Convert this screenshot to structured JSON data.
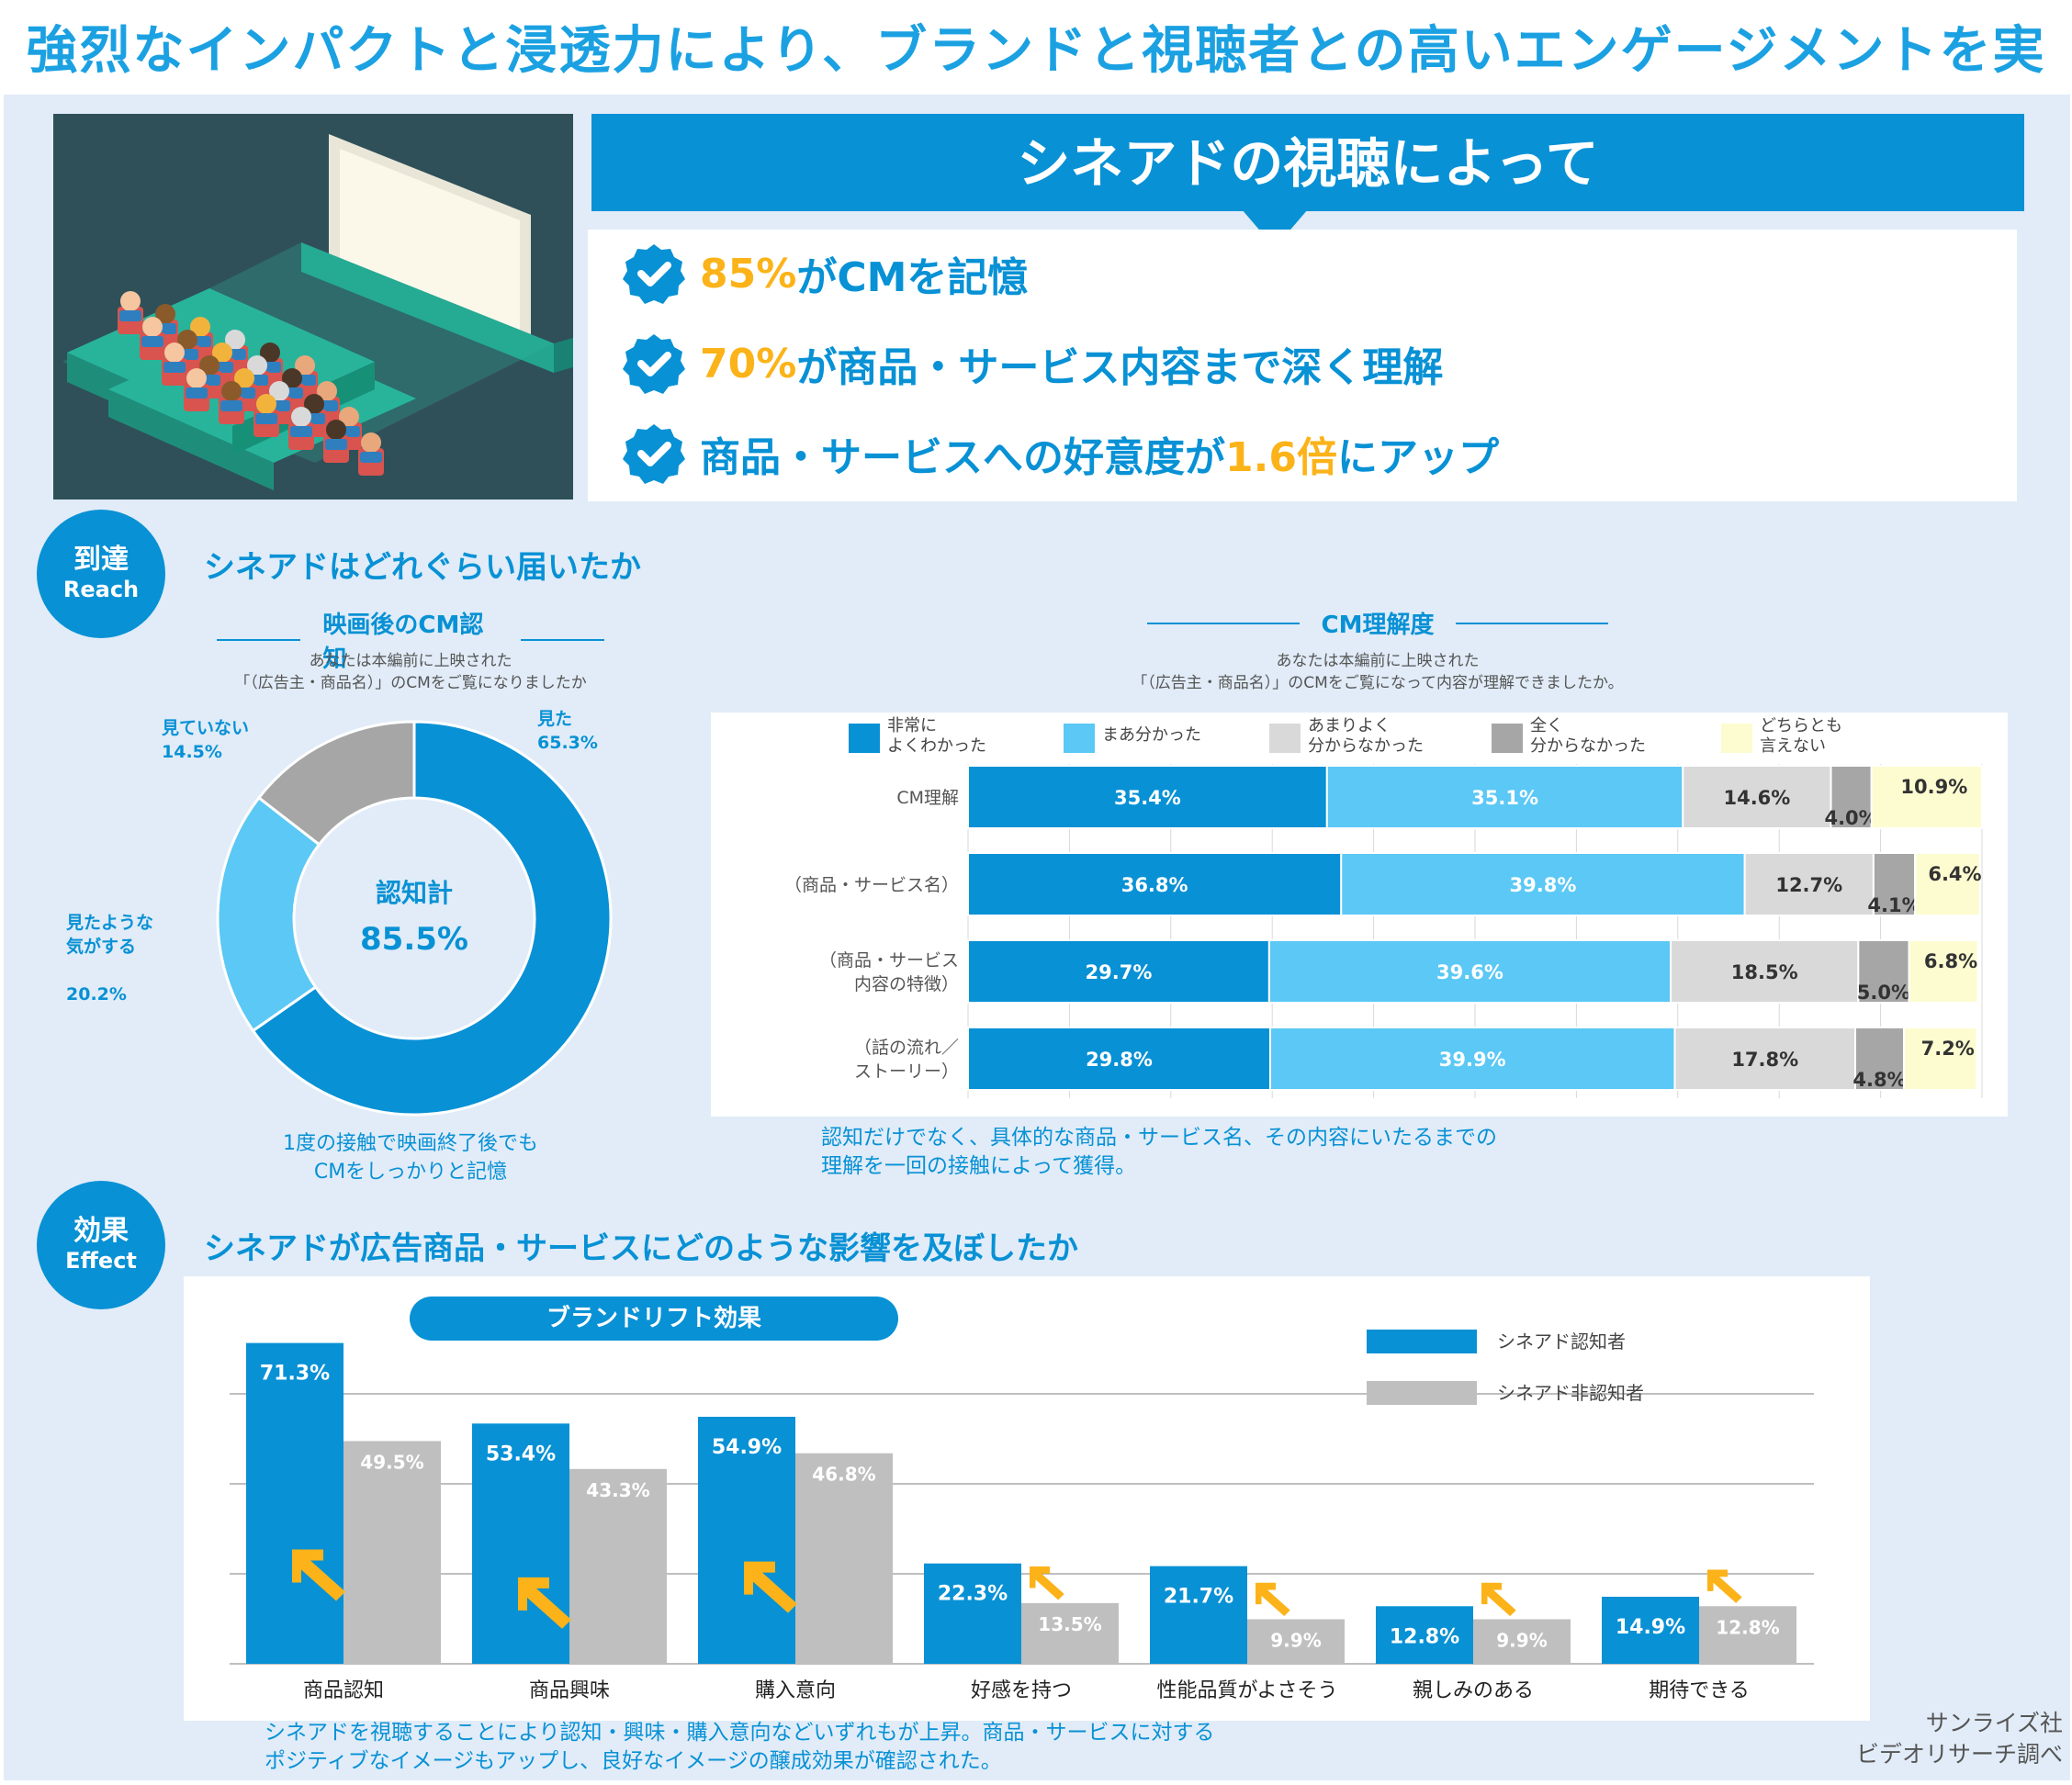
{
  "header": {
    "title": "強烈なインパクトと浸透力により、ブランドと視聴者との高いエンゲージメントを実現"
  },
  "view": {
    "banner": "シネアドの視聴によって",
    "points": [
      {
        "accent": "85%",
        "text": "がCMを記憶"
      },
      {
        "accent": "70%",
        "text": "が商品・サービス内容まで深く理解"
      },
      {
        "pre": "商品・サービスへの好意度が",
        "accent": "1.6倍",
        "text": "にアップ"
      }
    ]
  },
  "reach": {
    "badge": "到達",
    "badge_en": "Reach",
    "title": "シネアドはどれぐらい届いたか",
    "donut": {
      "subtitle": "映画後のCM認知",
      "question_1": "あなたは本編前に上映された",
      "question_2": "「（広告主・商品名）」のCMをご覧になりましたか",
      "center_label": "認知計",
      "center_value": "85.5%",
      "caption_1": "1度の接触で映画終了後でも",
      "caption_2": "CMをしっかりと記憶"
    },
    "bar": {
      "subtitle": "CM理解度",
      "question_1": "あなたは本編前に上映された",
      "question_2": "「（広告主・商品名）」のCMをご覧になって内容が理解できましたか。",
      "note_1": "認知だけでなく、具体的な商品・サービス名、その内容にいたるまでの",
      "note_2": "理解を一回の接触によって獲得。"
    }
  },
  "effect": {
    "badge": "効果",
    "badge_en": "Effect",
    "title": "シネアドが広告商品・サービスにどのような影響を及ぼしたか",
    "note_1": "シネアドを視聴することにより認知・興味・購入意向などいずれもが上昇。商品・サービスに対する",
    "note_2": "ポジティブなイメージもアップし、良好なイメージの醸成効果が確認された。"
  },
  "credit": {
    "line1": "サンライズ社",
    "line2": "ビデオリサーチ調べ"
  },
  "colors": {
    "blue": "#0891D5",
    "light_blue": "#5BC8F5",
    "light_gray": "#D9D9D9",
    "dark_gray": "#A6A6A6",
    "cream": "#FDFCD0",
    "accent": "#FBB319"
  },
  "chart_data": [
    {
      "type": "pie",
      "title": "映画後のCM認知",
      "categories": [
        "見た",
        "見たような気がする",
        "見ていない"
      ],
      "labels": [
        "見た",
        "見たような\n気がする",
        "見ていない"
      ],
      "values": [
        65.3,
        20.2,
        14.5
      ],
      "colors": [
        "#0891D5",
        "#5BC8F5",
        "#A6A6A6"
      ],
      "donut": true
    },
    {
      "type": "bar",
      "orientation": "horizontal",
      "stacked": true,
      "title": "CM理解度",
      "categories": [
        "CM理解",
        "（商品・サービス名）",
        "（商品・サービス\n内容の特徴）",
        "（話の流れ／\nストーリー）"
      ],
      "series": [
        {
          "name": "非常に\nよくわかった",
          "color": "#0891D5",
          "values": [
            35.4,
            36.8,
            29.7,
            29.8
          ]
        },
        {
          "name": "まあ分かった",
          "color": "#5BC8F5",
          "values": [
            35.1,
            39.8,
            39.6,
            39.9
          ]
        },
        {
          "name": "あまりよく\n分からなかった",
          "color": "#D9D9D9",
          "values": [
            14.6,
            12.7,
            18.5,
            17.8
          ]
        },
        {
          "name": "全く\n分からなかった",
          "color": "#A6A6A6",
          "values": [
            4.0,
            4.1,
            5.0,
            4.8
          ]
        },
        {
          "name": "どちらとも\n言えない",
          "color": "#FDFCD0",
          "values": [
            10.9,
            6.4,
            6.8,
            7.2
          ]
        }
      ],
      "legend": "top",
      "xlim": [
        0,
        100
      ]
    },
    {
      "type": "bar",
      "title": "ブランドリフト効果",
      "categories": [
        "商品認知",
        "商品興味",
        "購入意向",
        "好感を持つ",
        "性能品質がよさそう",
        "親しみのある",
        "期待できる"
      ],
      "series": [
        {
          "name": "シネアド認知者",
          "color": "#0891D5",
          "values": [
            71.3,
            53.4,
            54.9,
            22.3,
            21.7,
            12.8,
            14.9
          ]
        },
        {
          "name": "シネアド非認知者",
          "color": "#BFBFBF",
          "values": [
            49.5,
            43.3,
            46.8,
            13.5,
            9.9,
            9.9,
            12.8
          ]
        }
      ],
      "legend": "top-right",
      "ylim": [
        0,
        80
      ],
      "grid": true
    }
  ]
}
